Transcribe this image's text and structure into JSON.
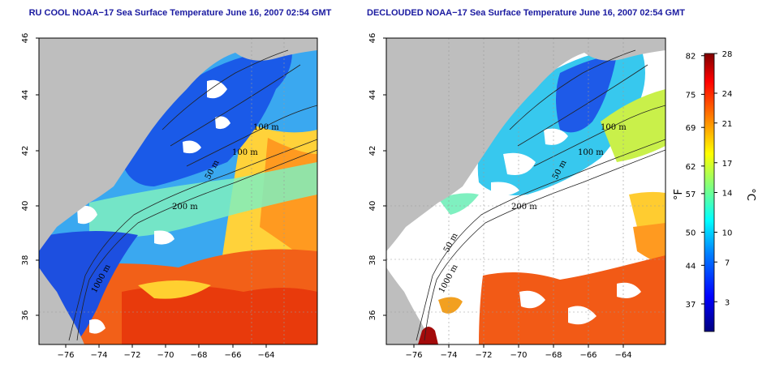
{
  "panels": [
    {
      "title": "RU COOL NOAA−17 Sea Surface Temperature June 16, 2007 02:54 GMT",
      "contour_labels": [
        "100 m",
        "100 m",
        "50 m",
        "200 m",
        "1000 m"
      ],
      "declouded": false
    },
    {
      "title": "DECLOUDED NOAA−17 Sea Surface Temperature June 16, 2007 02:54 GMT",
      "contour_labels": [
        "100 m",
        "100 m",
        "50 m",
        "200 m",
        "50 m",
        "1000 m"
      ],
      "declouded": true
    }
  ],
  "axes": {
    "lon_ticks": [
      "−76",
      "−74",
      "−72",
      "−70",
      "−68",
      "−66",
      "−64"
    ],
    "lat_ticks": [
      "36",
      "38",
      "40",
      "42",
      "44",
      "46"
    ]
  },
  "colorbar": {
    "fahrenheit_ticks": [
      "82",
      "75",
      "69",
      "62",
      "57",
      "50",
      "44",
      "37"
    ],
    "celsius_ticks": [
      "28",
      "24",
      "21",
      "17",
      "14",
      "10",
      "7",
      "3"
    ],
    "fahrenheit_unit": "°F",
    "celsius_unit": "°C",
    "celsius_range": [
      0,
      28
    ]
  },
  "colors": {
    "land": "#bebebe",
    "cloud": "#ffffff",
    "title": "#1a1aa0",
    "scale": [
      "#00007f",
      "#0000ff",
      "#007fff",
      "#00ffff",
      "#7fff7f",
      "#ffff00",
      "#ff7f00",
      "#ff0000",
      "#7f0000"
    ]
  }
}
